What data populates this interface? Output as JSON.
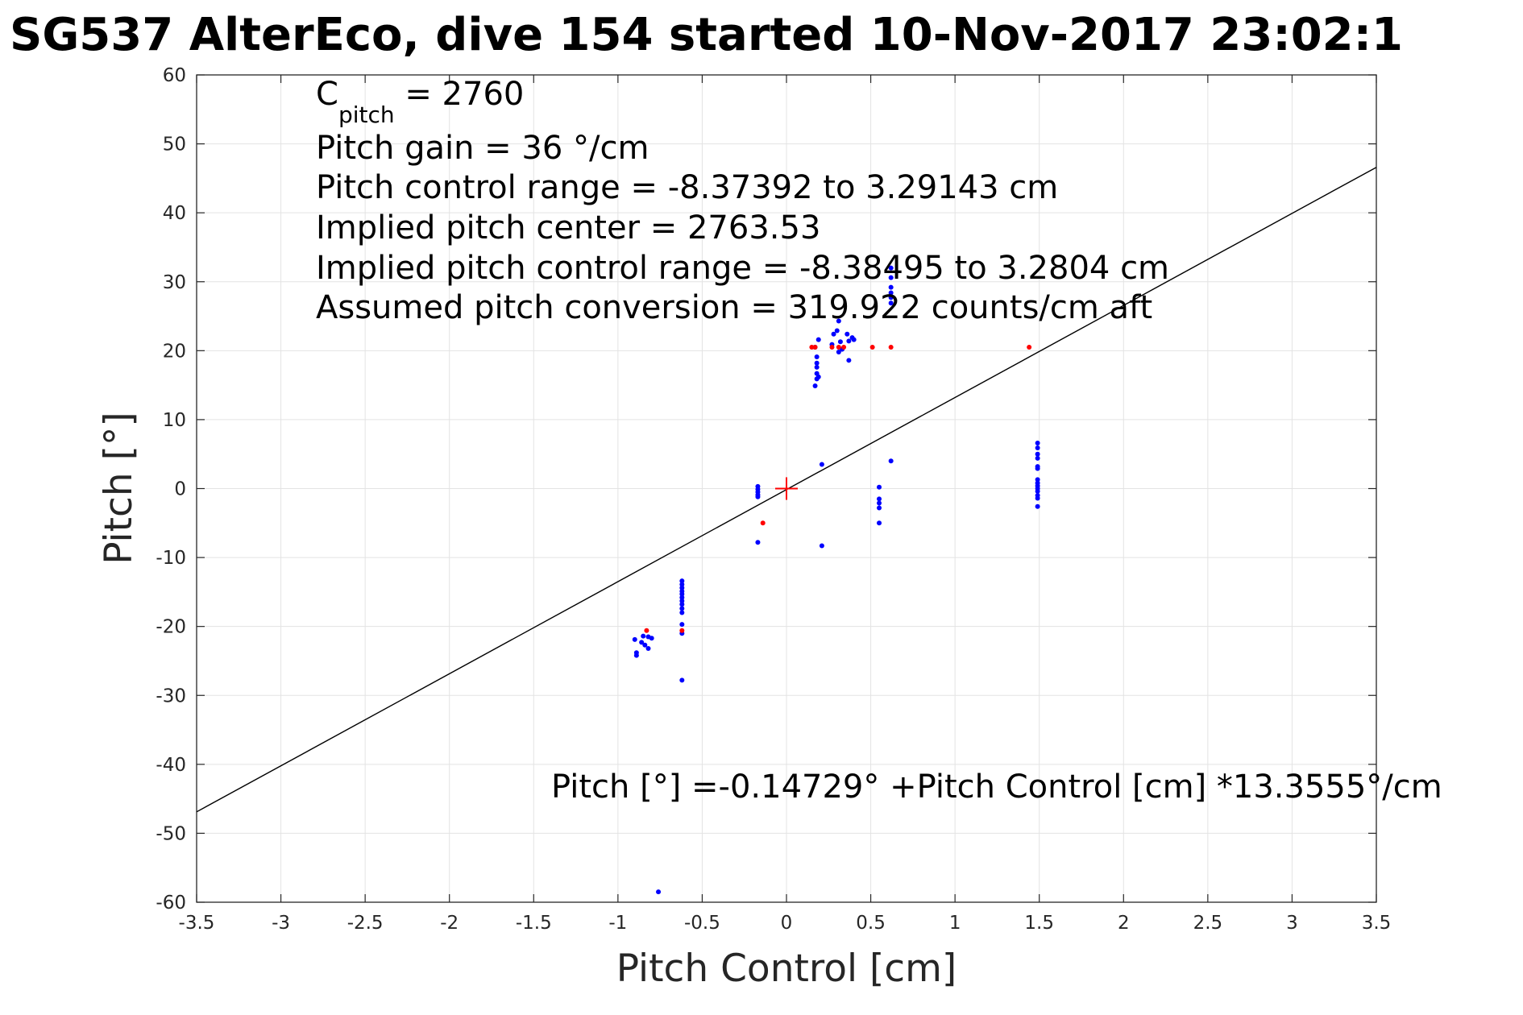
{
  "chart_data": {
    "type": "scatter",
    "title": "SG537 AlterEco, dive 154 started 10-Nov-2017 23:02:1",
    "xlabel": "Pitch Control [cm]",
    "ylabel": "Pitch [°]",
    "xlim": [
      -3.5,
      3.5
    ],
    "ylim": [
      -60,
      60
    ],
    "xticks": [
      -3.5,
      -3,
      -2.5,
      -2,
      -1.5,
      -1,
      -0.5,
      0,
      0.5,
      1,
      1.5,
      2,
      2.5,
      3,
      3.5
    ],
    "xtick_labels": [
      "-3.5",
      "-3",
      "-2.5",
      "-2",
      "-1.5",
      "-1",
      "-0.5",
      "0",
      "0.5",
      "1",
      "1.5",
      "2",
      "2.5",
      "3",
      "3.5"
    ],
    "yticks": [
      -60,
      -50,
      -40,
      -30,
      -20,
      -10,
      0,
      10,
      20,
      30,
      40,
      50,
      60
    ],
    "ytick_labels": [
      "-60",
      "-50",
      "-40",
      "-30",
      "-20",
      "-10",
      "0",
      "10",
      "20",
      "30",
      "40",
      "50",
      "60"
    ],
    "grid": true,
    "annotations": {
      "c_pitch_prefix": "C",
      "c_pitch_sub": "pitch",
      "c_pitch_value": " = 2760",
      "lines": [
        "Pitch gain = 36 °/cm",
        "Pitch control range = -8.37392 to 3.29143 cm",
        "Implied pitch center = 2763.53",
        "Implied pitch control range = -8.38495 to 3.2804 cm",
        "Assumed pitch conversion = 319.922 counts/cm aft"
      ],
      "fit_equation": "Pitch [°] =-0.14729° +Pitch Control [cm] *13.3555°/cm"
    },
    "fit_line": {
      "intercept": -0.14729,
      "slope": 13.3555
    },
    "center_marker": {
      "x": 0,
      "y": 0
    },
    "series": [
      {
        "color": "#0000ff",
        "points": [
          [
            -0.89,
            -24.2
          ],
          [
            -0.89,
            -23.8
          ],
          [
            -0.9,
            -21.9
          ],
          [
            -0.86,
            -22.3
          ],
          [
            -0.85,
            -21.4
          ],
          [
            -0.82,
            -21.5
          ],
          [
            -0.84,
            -22.7
          ],
          [
            -0.82,
            -23.2
          ],
          [
            -0.8,
            -21.7
          ],
          [
            -0.76,
            -58.5
          ],
          [
            -0.62,
            -13.4
          ],
          [
            -0.62,
            -13.9
          ],
          [
            -0.62,
            -14.4
          ],
          [
            -0.62,
            -14.9
          ],
          [
            -0.62,
            -15.3
          ],
          [
            -0.62,
            -15.8
          ],
          [
            -0.62,
            -16.3
          ],
          [
            -0.62,
            -16.8
          ],
          [
            -0.62,
            -17.4
          ],
          [
            -0.62,
            -18.0
          ],
          [
            -0.62,
            -19.7
          ],
          [
            -0.62,
            -21.0
          ],
          [
            -0.62,
            -27.8
          ],
          [
            -0.17,
            0.3
          ],
          [
            -0.17,
            -0.1
          ],
          [
            -0.17,
            -0.5
          ],
          [
            -0.17,
            -0.9
          ],
          [
            -0.17,
            -1.2
          ],
          [
            -0.17,
            -7.8
          ],
          [
            0.17,
            20.5
          ],
          [
            0.18,
            19.1
          ],
          [
            0.18,
            18.2
          ],
          [
            0.18,
            17.6
          ],
          [
            0.18,
            16.7
          ],
          [
            0.18,
            15.9
          ],
          [
            0.17,
            14.9
          ],
          [
            0.19,
            21.6
          ],
          [
            0.19,
            16.2
          ],
          [
            0.21,
            3.5
          ],
          [
            0.21,
            -8.3
          ],
          [
            0.27,
            20.9
          ],
          [
            0.28,
            22.4
          ],
          [
            0.3,
            22.9
          ],
          [
            0.31,
            19.8
          ],
          [
            0.32,
            21.3
          ],
          [
            0.31,
            24.3
          ],
          [
            0.33,
            20.2
          ],
          [
            0.36,
            22.4
          ],
          [
            0.37,
            18.6
          ],
          [
            0.37,
            21.4
          ],
          [
            0.39,
            21.9
          ],
          [
            0.4,
            21.6
          ],
          [
            0.55,
            0.2
          ],
          [
            0.55,
            -1.5
          ],
          [
            0.55,
            -2.1
          ],
          [
            0.55,
            -2.8
          ],
          [
            0.55,
            -5.0
          ],
          [
            0.62,
            26.9
          ],
          [
            0.62,
            27.7
          ],
          [
            0.62,
            28.4
          ],
          [
            0.62,
            29.2
          ],
          [
            0.62,
            30.6
          ],
          [
            0.62,
            32.0
          ],
          [
            0.62,
            4.0
          ],
          [
            1.49,
            6.6
          ],
          [
            1.49,
            5.9
          ],
          [
            1.49,
            5.0
          ],
          [
            1.49,
            4.4
          ],
          [
            1.49,
            3.2
          ],
          [
            1.49,
            2.9
          ],
          [
            1.49,
            1.3
          ],
          [
            1.49,
            0.8
          ],
          [
            1.49,
            0.4
          ],
          [
            1.49,
            0.0
          ],
          [
            1.49,
            -0.4
          ],
          [
            1.49,
            -1.0
          ],
          [
            1.49,
            -1.4
          ],
          [
            1.49,
            -2.6
          ]
        ]
      },
      {
        "color": "#ff0000",
        "points": [
          [
            -0.83,
            -20.6
          ],
          [
            -0.62,
            -20.6
          ],
          [
            -0.14,
            -5.0
          ],
          [
            0.15,
            20.5
          ],
          [
            0.17,
            20.5
          ],
          [
            0.27,
            20.5
          ],
          [
            0.31,
            20.5
          ],
          [
            0.34,
            20.5
          ],
          [
            0.51,
            20.5
          ],
          [
            0.62,
            20.5
          ],
          [
            1.44,
            20.5
          ]
        ]
      }
    ]
  }
}
